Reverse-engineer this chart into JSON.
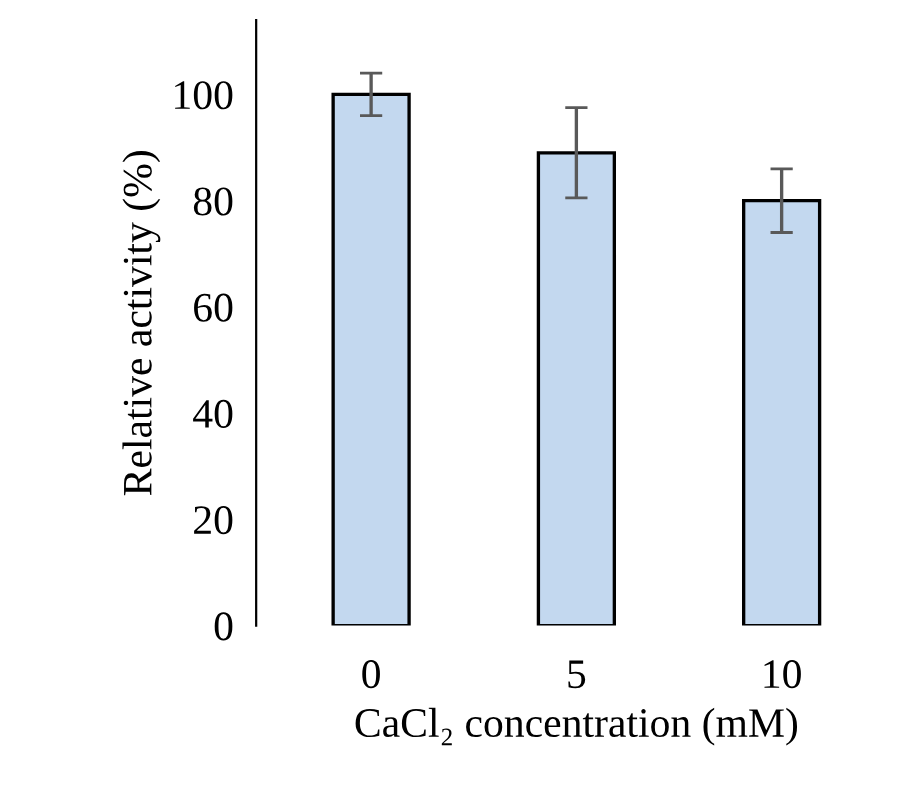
{
  "chart_data": {
    "type": "bar",
    "xlabel": "CaCl₂ concentration (mM)",
    "ylabel": "Relative activity (%)",
    "categories": [
      "0",
      "5",
      "10"
    ],
    "values": [
      100,
      89,
      80
    ],
    "errors": [
      4,
      8.5,
      6
    ],
    "color": "#c3d8ef",
    "ylim": [
      0,
      114
    ],
    "yticks": [
      0,
      20,
      40,
      60,
      80,
      100
    ],
    "grid": false,
    "legend": false
  }
}
